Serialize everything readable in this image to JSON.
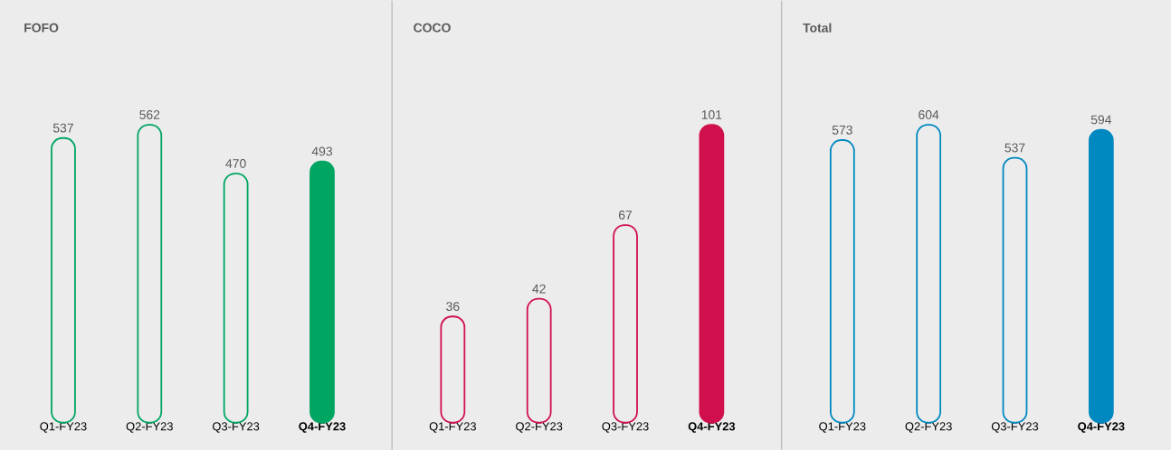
{
  "chart_data": [
    {
      "type": "bar",
      "title": "FOFO",
      "categories": [
        "Q1-FY23",
        "Q2-FY23",
        "Q3-FY23",
        "**Q4-FY23**"
      ],
      "values": [
        537,
        562,
        470,
        493
      ],
      "color": "#00a562",
      "data_labels": true
    },
    {
      "type": "bar",
      "title": "COCO",
      "categories": [
        "Q1-FY23",
        "Q2-FY23",
        "Q3-FY23",
        "**Q4-FY23**"
      ],
      "values": [
        36,
        42,
        67,
        101
      ],
      "color": "#d0104c",
      "data_labels": true
    },
    {
      "type": "bar",
      "title": "Total",
      "categories": [
        "Q1-FY23",
        "Q2-FY23",
        "Q3-FY23",
        "**Q4-FY23**"
      ],
      "values": [
        573,
        604,
        537,
        594
      ],
      "color": "#0088c0",
      "data_labels": true
    }
  ]
}
